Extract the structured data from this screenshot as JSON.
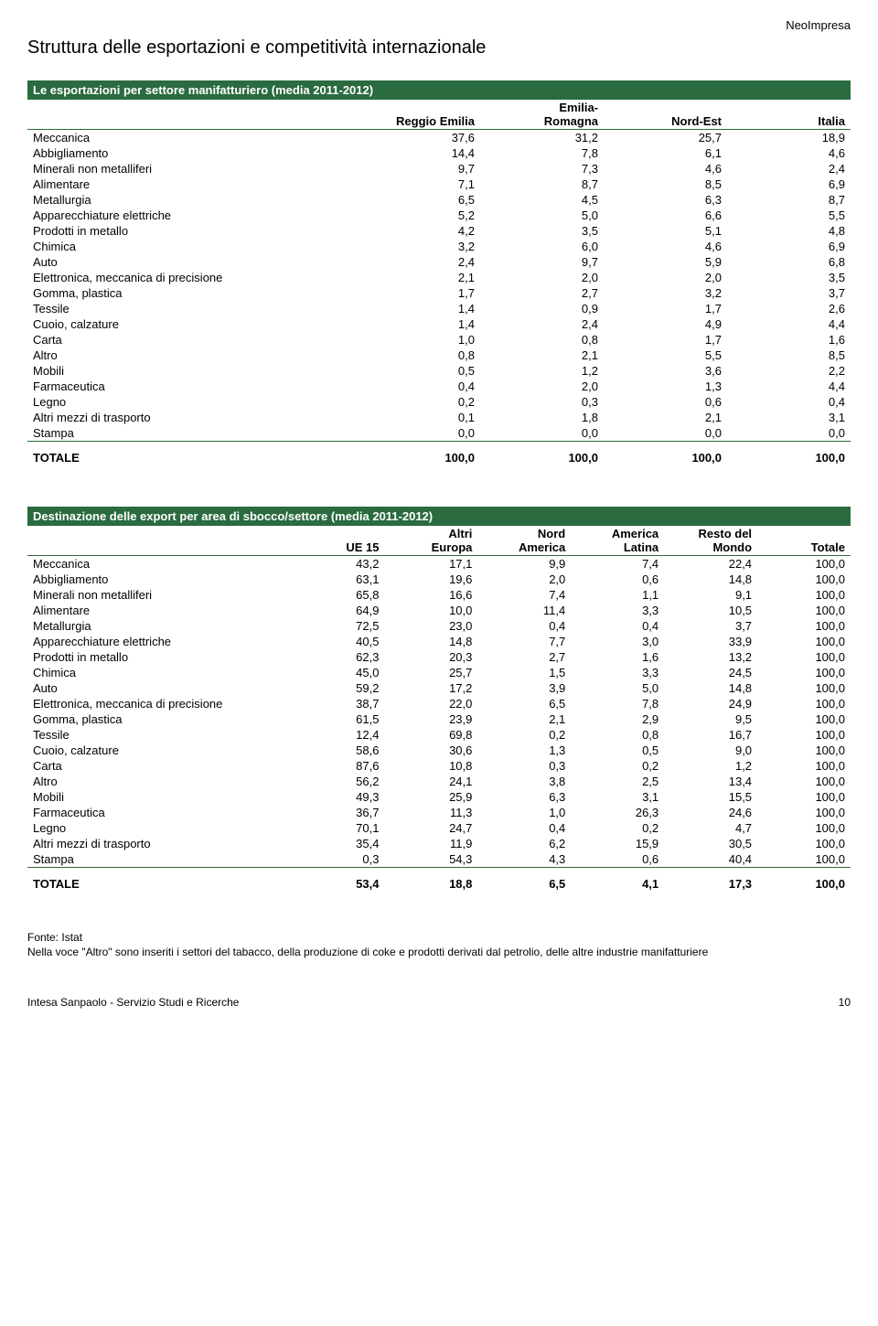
{
  "brand": "NeoImpresa",
  "page_title": "Struttura delle esportazioni e competitività internazionale",
  "table1": {
    "title": "Le esportazioni per settore manifatturiero (media 2011-2012)",
    "columns": [
      "",
      "Reggio Emilia",
      "Emilia-\nRomagna",
      "Nord-Est",
      "Italia"
    ],
    "rows": [
      [
        "Meccanica",
        "37,6",
        "31,2",
        "25,7",
        "18,9"
      ],
      [
        "Abbigliamento",
        "14,4",
        "7,8",
        "6,1",
        "4,6"
      ],
      [
        "Minerali non metalliferi",
        "9,7",
        "7,3",
        "4,6",
        "2,4"
      ],
      [
        "Alimentare",
        "7,1",
        "8,7",
        "8,5",
        "6,9"
      ],
      [
        "Metallurgia",
        "6,5",
        "4,5",
        "6,3",
        "8,7"
      ],
      [
        "Apparecchiature elettriche",
        "5,2",
        "5,0",
        "6,6",
        "5,5"
      ],
      [
        "Prodotti in metallo",
        "4,2",
        "3,5",
        "5,1",
        "4,8"
      ],
      [
        "Chimica",
        "3,2",
        "6,0",
        "4,6",
        "6,9"
      ],
      [
        "Auto",
        "2,4",
        "9,7",
        "5,9",
        "6,8"
      ],
      [
        "Elettronica, meccanica di precisione",
        "2,1",
        "2,0",
        "2,0",
        "3,5"
      ],
      [
        "Gomma, plastica",
        "1,7",
        "2,7",
        "3,2",
        "3,7"
      ],
      [
        "Tessile",
        "1,4",
        "0,9",
        "1,7",
        "2,6"
      ],
      [
        "Cuoio, calzature",
        "1,4",
        "2,4",
        "4,9",
        "4,4"
      ],
      [
        "Carta",
        "1,0",
        "0,8",
        "1,7",
        "1,6"
      ],
      [
        "Altro",
        "0,8",
        "2,1",
        "5,5",
        "8,5"
      ],
      [
        "Mobili",
        "0,5",
        "1,2",
        "3,6",
        "2,2"
      ],
      [
        "Farmaceutica",
        "0,4",
        "2,0",
        "1,3",
        "4,4"
      ],
      [
        "Legno",
        "0,2",
        "0,3",
        "0,6",
        "0,4"
      ],
      [
        "Altri mezzi di trasporto",
        "0,1",
        "1,8",
        "2,1",
        "3,1"
      ],
      [
        "Stampa",
        "0,0",
        "0,0",
        "0,0",
        "0,0"
      ]
    ],
    "total": [
      "TOTALE",
      "100,0",
      "100,0",
      "100,0",
      "100,0"
    ]
  },
  "table2": {
    "title": "Destinazione delle export per area di sbocco/settore (media 2011-2012)",
    "columns": [
      "",
      "UE 15",
      "Altri\nEuropa",
      "Nord\nAmerica",
      "America\nLatina",
      "Resto del\nMondo",
      "Totale"
    ],
    "rows": [
      [
        "Meccanica",
        "43,2",
        "17,1",
        "9,9",
        "7,4",
        "22,4",
        "100,0"
      ],
      [
        "Abbigliamento",
        "63,1",
        "19,6",
        "2,0",
        "0,6",
        "14,8",
        "100,0"
      ],
      [
        "Minerali non metalliferi",
        "65,8",
        "16,6",
        "7,4",
        "1,1",
        "9,1",
        "100,0"
      ],
      [
        "Alimentare",
        "64,9",
        "10,0",
        "11,4",
        "3,3",
        "10,5",
        "100,0"
      ],
      [
        "Metallurgia",
        "72,5",
        "23,0",
        "0,4",
        "0,4",
        "3,7",
        "100,0"
      ],
      [
        "Apparecchiature elettriche",
        "40,5",
        "14,8",
        "7,7",
        "3,0",
        "33,9",
        "100,0"
      ],
      [
        "Prodotti in metallo",
        "62,3",
        "20,3",
        "2,7",
        "1,6",
        "13,2",
        "100,0"
      ],
      [
        "Chimica",
        "45,0",
        "25,7",
        "1,5",
        "3,3",
        "24,5",
        "100,0"
      ],
      [
        "Auto",
        "59,2",
        "17,2",
        "3,9",
        "5,0",
        "14,8",
        "100,0"
      ],
      [
        "Elettronica, meccanica di precisione",
        "38,7",
        "22,0",
        "6,5",
        "7,8",
        "24,9",
        "100,0"
      ],
      [
        "Gomma, plastica",
        "61,5",
        "23,9",
        "2,1",
        "2,9",
        "9,5",
        "100,0"
      ],
      [
        "Tessile",
        "12,4",
        "69,8",
        "0,2",
        "0,8",
        "16,7",
        "100,0"
      ],
      [
        "Cuoio, calzature",
        "58,6",
        "30,6",
        "1,3",
        "0,5",
        "9,0",
        "100,0"
      ],
      [
        "Carta",
        "87,6",
        "10,8",
        "0,3",
        "0,2",
        "1,2",
        "100,0"
      ],
      [
        "Altro",
        "56,2",
        "24,1",
        "3,8",
        "2,5",
        "13,4",
        "100,0"
      ],
      [
        "Mobili",
        "49,3",
        "25,9",
        "6,3",
        "3,1",
        "15,5",
        "100,0"
      ],
      [
        "Farmaceutica",
        "36,7",
        "11,3",
        "1,0",
        "26,3",
        "24,6",
        "100,0"
      ],
      [
        "Legno",
        "70,1",
        "24,7",
        "0,4",
        "0,2",
        "4,7",
        "100,0"
      ],
      [
        "Altri mezzi di trasporto",
        "35,4",
        "11,9",
        "6,2",
        "15,9",
        "30,5",
        "100,0"
      ],
      [
        "Stampa",
        "0,3",
        "54,3",
        "4,3",
        "0,6",
        "40,4",
        "100,0"
      ]
    ],
    "total": [
      "TOTALE",
      "53,4",
      "18,8",
      "6,5",
      "4,1",
      "17,3",
      "100,0"
    ]
  },
  "footnote_source": "Fonte: Istat",
  "footnote_note": "Nella voce \"Altro\" sono inseriti i settori del tabacco, della produzione di coke e prodotti derivati dal petrolio, delle altre industrie manifatturiere",
  "footer_left": "Intesa Sanpaolo - Servizio Studi e Ricerche",
  "footer_page": "10",
  "colors": {
    "header_bar": "#2a6b3f",
    "header_text": "#ffffff",
    "rule": "#2a6b3f",
    "text": "#000000",
    "background": "#ffffff"
  }
}
